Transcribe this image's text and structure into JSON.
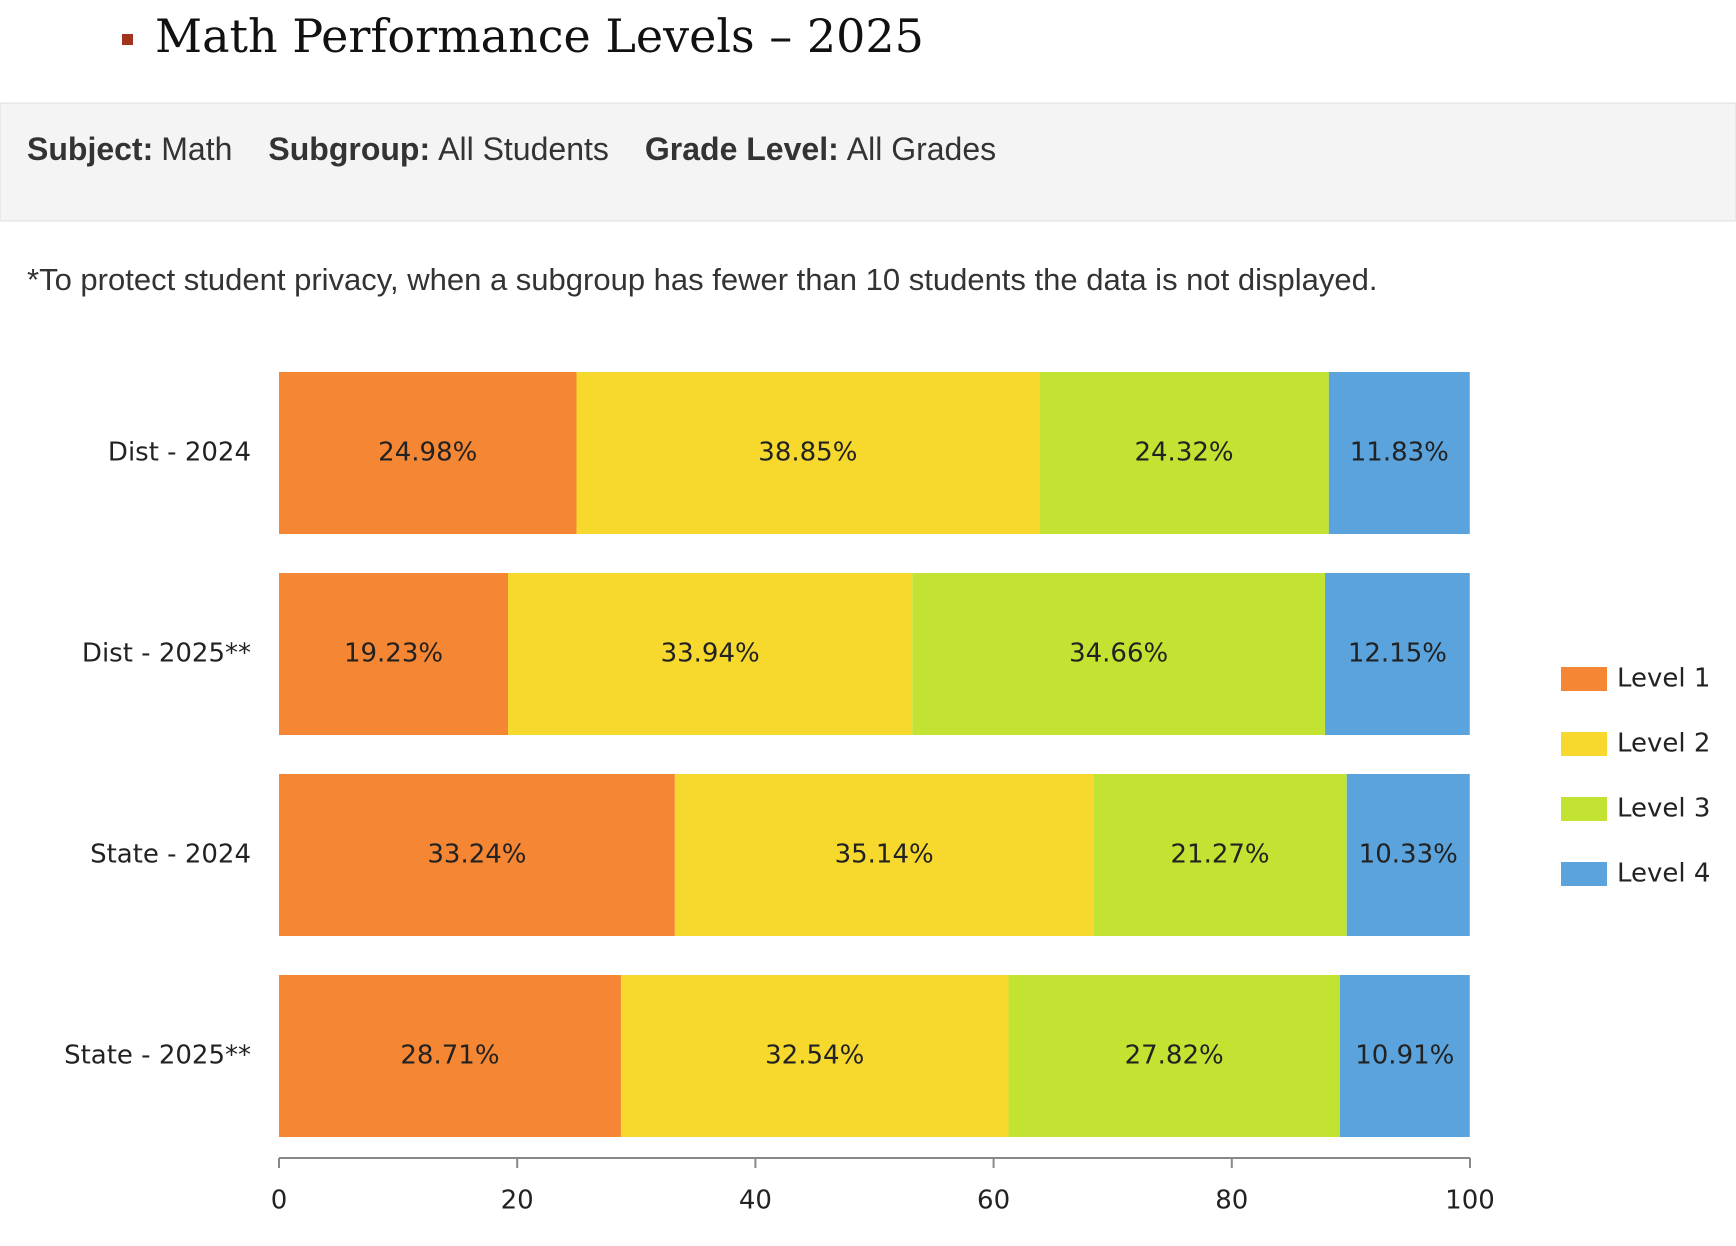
{
  "page": {
    "title": "Math Performance Levels – 2025",
    "filters": [
      {
        "label": "Subject:",
        "value": "Math"
      },
      {
        "label": "Subgroup:",
        "value": "All Students"
      },
      {
        "label": "Grade Level:",
        "value": "All Grades"
      }
    ],
    "note": "*To protect student privacy, when a subgroup has fewer than 10 students the data is not displayed."
  },
  "chart_data": {
    "type": "stacked-hbar",
    "categories": [
      "Dist - 2024",
      "Dist - 2025**",
      "State - 2024",
      "State - 2025**"
    ],
    "series": [
      {
        "name": "Level 1",
        "color": "#f58634",
        "values": [
          24.98,
          19.23,
          33.24,
          28.71
        ],
        "value_labels": [
          "24.98%",
          "19.23%",
          "33.24%",
          "28.71%"
        ]
      },
      {
        "name": "Level 2",
        "color": "#f7d92e",
        "values": [
          38.85,
          33.94,
          35.14,
          32.54
        ],
        "value_labels": [
          "38.85%",
          "33.94%",
          "35.14%",
          "32.54%"
        ]
      },
      {
        "name": "Level 3",
        "color": "#c3e332",
        "values": [
          24.32,
          34.66,
          21.27,
          27.82
        ],
        "value_labels": [
          "24.32%",
          "34.66%",
          "21.27%",
          "27.82%"
        ]
      },
      {
        "name": "Level 4",
        "color": "#5ba3dc",
        "values": [
          11.83,
          12.15,
          10.33,
          10.91
        ],
        "value_labels": [
          "11.83%",
          "12.15%",
          "10.33%",
          "10.91%"
        ]
      }
    ],
    "xlim": [
      0,
      100
    ],
    "xticks": [
      0,
      20,
      40,
      60,
      80,
      100
    ],
    "legend": "right"
  }
}
